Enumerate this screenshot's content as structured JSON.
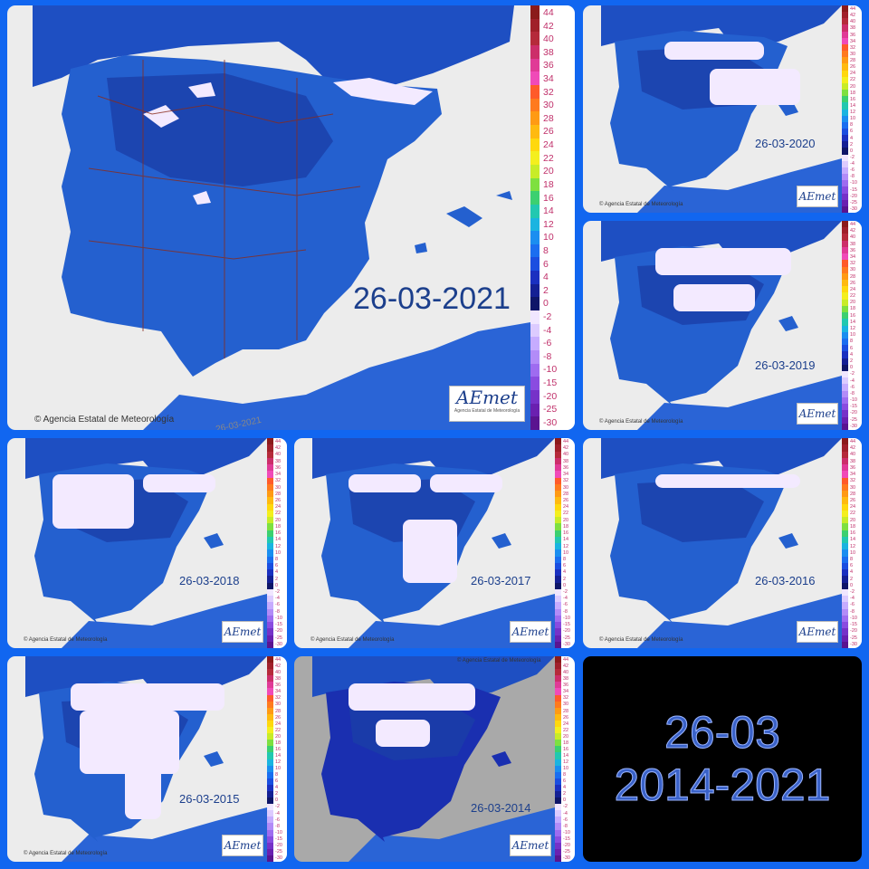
{
  "colors": {
    "frame": "#1166f0",
    "sea": "#2f6fd8",
    "land": "#2460cf",
    "land_dark": "#1a3fa8",
    "snow": "#f3eaff",
    "background_gray": "#ececec"
  },
  "scale": {
    "labels": [
      "44",
      "42",
      "40",
      "38",
      "36",
      "34",
      "32",
      "30",
      "28",
      "26",
      "24",
      "22",
      "20",
      "18",
      "16",
      "14",
      "12",
      "10",
      "8",
      "6",
      "4",
      "2",
      "0",
      "-2",
      "-4",
      "-6",
      "-8",
      "-10",
      "-15",
      "-20",
      "-25",
      "-30"
    ],
    "colors": [
      "#8b1a1a",
      "#a0202a",
      "#b52a3a",
      "#cc2e6a",
      "#e03a96",
      "#f04ab8",
      "#ff5a2a",
      "#ff7a1e",
      "#ff9a14",
      "#ffba10",
      "#ffd80e",
      "#f4ef1e",
      "#c8ec28",
      "#7ee040",
      "#3cd070",
      "#22c8b0",
      "#1ab4e0",
      "#1a8ef0",
      "#1a6ef0",
      "#1a4ee0",
      "#1a30c0",
      "#142094",
      "#0e1668",
      "#f0e6ff",
      "#dccbff",
      "#c6acff",
      "#b28cf8",
      "#9e6cf0",
      "#8a4ce0",
      "#7632c8",
      "#6a20b0",
      "#5a1490"
    ]
  },
  "main_map": {
    "date": "26-03-2021",
    "credit": "© Agencia Estatal de Meteorología",
    "logo": "AEmet",
    "logo_sub": "Agencia Estatal de Meteorología",
    "watermark": "26-03-2021"
  },
  "maps": [
    {
      "id": "2020",
      "date": "26-03-2020",
      "credit": "© Agencia Estatal de Meteorología",
      "logo": "AEmet"
    },
    {
      "id": "2019",
      "date": "26-03-2019",
      "credit": "© Agencia Estatal de Meteorología",
      "logo": "AEmet"
    },
    {
      "id": "2018",
      "date": "26-03-2018",
      "credit": "© Agencia Estatal de Meteorología",
      "logo": "AEmet"
    },
    {
      "id": "2017",
      "date": "26-03-2017",
      "credit": "© Agencia Estatal de Meteorología",
      "logo": "AEmet"
    },
    {
      "id": "2016",
      "date": "26-03-2016",
      "credit": "© Agencia Estatal de Meteorología",
      "logo": "AEmet"
    },
    {
      "id": "2015",
      "date": "26-03-2015",
      "credit": "© Agencia Estatal de Meteorología",
      "logo": "AEmet"
    },
    {
      "id": "2014",
      "date": "26-03-2014",
      "credit": "© Agencia Estatal de Meteorología",
      "logo": "AEmet"
    }
  ],
  "summary": {
    "line1": "26-03",
    "line2": "2014-2021"
  }
}
